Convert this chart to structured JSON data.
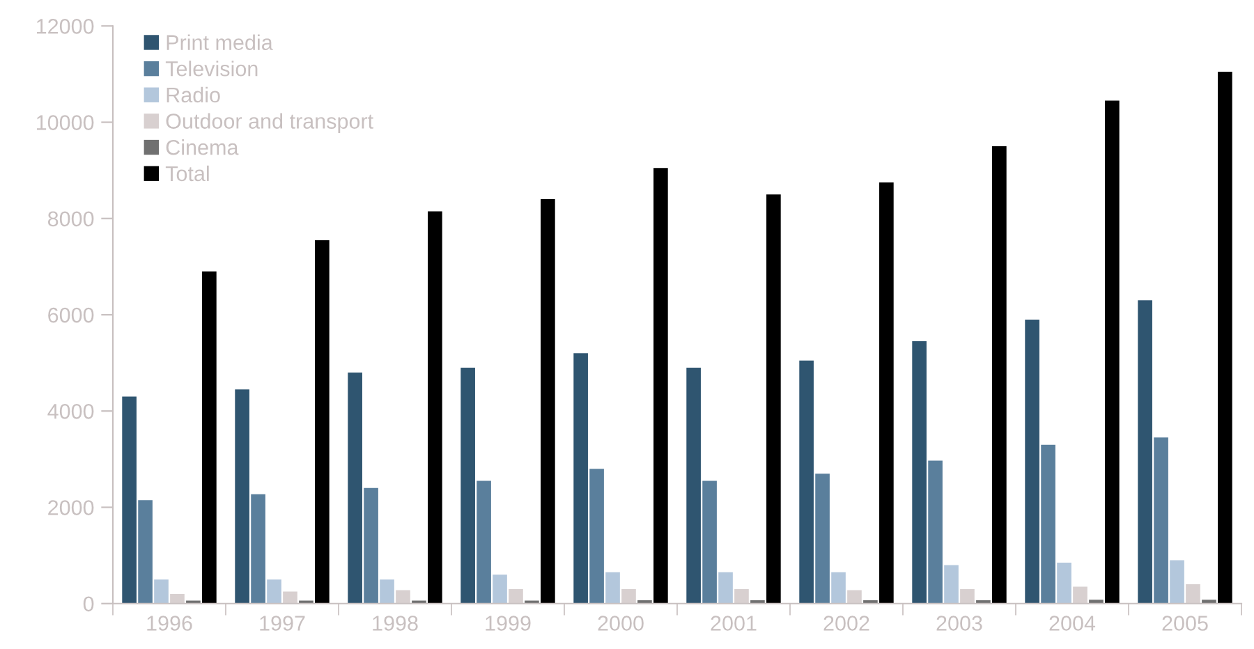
{
  "chart_data": {
    "type": "bar",
    "categories": [
      "1996",
      "1997",
      "1998",
      "1999",
      "2000",
      "2001",
      "2002",
      "2003",
      "2004",
      "2005"
    ],
    "series": [
      {
        "name": "Print media",
        "color": "#2f5570",
        "values": [
          4300,
          4450,
          4800,
          4900,
          5200,
          4900,
          5050,
          5450,
          5900,
          6300
        ]
      },
      {
        "name": "Television",
        "color": "#5a7f9c",
        "values": [
          2150,
          2270,
          2400,
          2550,
          2800,
          2550,
          2700,
          2970,
          3300,
          3450
        ]
      },
      {
        "name": "Radio",
        "color": "#b3c7dc",
        "values": [
          500,
          500,
          500,
          600,
          650,
          650,
          650,
          800,
          850,
          900
        ]
      },
      {
        "name": "Outdoor and transport",
        "color": "#d8d0d0",
        "values": [
          200,
          250,
          280,
          300,
          300,
          300,
          280,
          300,
          350,
          400
        ]
      },
      {
        "name": "Cinema",
        "color": "#707070",
        "values": [
          60,
          60,
          60,
          60,
          70,
          70,
          70,
          70,
          80,
          80
        ]
      },
      {
        "name": "Total",
        "color": "#000000",
        "values": [
          6900,
          7550,
          8150,
          8400,
          9050,
          8500,
          8750,
          9500,
          10450,
          11050
        ]
      }
    ],
    "ylim": [
      0,
      12000
    ],
    "yticks": [
      0,
      2000,
      4000,
      6000,
      8000,
      10000,
      12000
    ],
    "grid": false,
    "legend": "top left"
  }
}
